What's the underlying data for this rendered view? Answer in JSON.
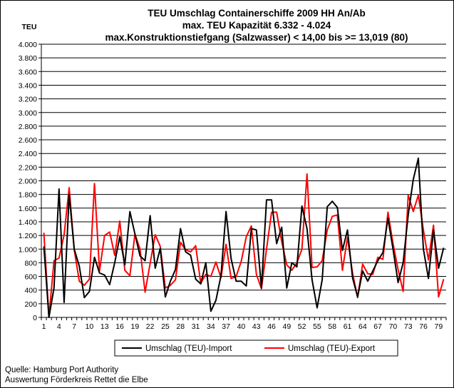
{
  "source_lines": [
    "Quelle: Hamburg Port Authority",
    "Auswertung Förderkreis Rettet die Elbe"
  ],
  "chart_data": {
    "type": "line",
    "title": [
      "TEU Umschlag Containerschiffe 2009 HH An/Ab",
      "max. TEU Kapazität  6.332 - 4.024",
      "max.Konstruktionstiefgang (Salzwasser) < 14,00 bis >= 13,019 (80)"
    ],
    "ylabel": "TEU",
    "xlabel": "",
    "ylim": [
      0,
      4000
    ],
    "yticks": [
      0,
      200,
      400,
      600,
      800,
      1000,
      1200,
      1400,
      1600,
      1800,
      2000,
      2200,
      2400,
      2600,
      2800,
      3000,
      3200,
      3400,
      3600,
      3800,
      4000
    ],
    "ytick_labels": [
      "0",
      "200",
      "400",
      "600",
      "800",
      "1.000",
      "1.200",
      "1.400",
      "1.600",
      "1.800",
      "2.000",
      "2.200",
      "2.400",
      "2.600",
      "2.800",
      "3.000",
      "3.200",
      "3.400",
      "3.600",
      "3.800",
      "4.000"
    ],
    "xticks": [
      1,
      4,
      7,
      10,
      13,
      16,
      19,
      22,
      25,
      28,
      31,
      34,
      37,
      40,
      43,
      46,
      49,
      52,
      55,
      58,
      61,
      64,
      67,
      70,
      73,
      76,
      79
    ],
    "grid": true,
    "legend_position": "bottom",
    "x": [
      1,
      2,
      3,
      4,
      5,
      6,
      7,
      8,
      9,
      10,
      11,
      12,
      13,
      14,
      15,
      16,
      17,
      18,
      19,
      20,
      21,
      22,
      23,
      24,
      25,
      26,
      27,
      28,
      29,
      30,
      31,
      32,
      33,
      34,
      35,
      36,
      37,
      38,
      39,
      40,
      41,
      42,
      43,
      44,
      45,
      46,
      47,
      48,
      49,
      50,
      51,
      52,
      53,
      54,
      55,
      56,
      57,
      58,
      59,
      60,
      61,
      62,
      63,
      64,
      65,
      66,
      67,
      68,
      69,
      70,
      71,
      72,
      73,
      74,
      75,
      76,
      77,
      78,
      79,
      80
    ],
    "series": [
      {
        "name": "Umschlag (TEU)-Import",
        "color": "#000000",
        "values": [
          1040,
          0,
          430,
          1880,
          220,
          1800,
          1000,
          750,
          290,
          380,
          880,
          650,
          620,
          480,
          800,
          1180,
          770,
          1550,
          1220,
          900,
          830,
          1490,
          720,
          1010,
          300,
          530,
          700,
          1300,
          960,
          910,
          560,
          490,
          800,
          90,
          250,
          610,
          1550,
          860,
          530,
          530,
          460,
          1300,
          1280,
          430,
          1720,
          1720,
          1080,
          1320,
          430,
          800,
          740,
          1630,
          1300,
          550,
          140,
          550,
          1620,
          1700,
          1610,
          980,
          1280,
          580,
          300,
          680,
          530,
          680,
          830,
          950,
          1450,
          1000,
          510,
          800,
          1500,
          2020,
          2330,
          1000,
          570,
          1280,
          720,
          1020
        ]
      },
      {
        "name": "Umschlag (TEU)-Export",
        "color": "#ff0000",
        "values": [
          1240,
          0,
          830,
          870,
          1210,
          1900,
          990,
          530,
          470,
          560,
          1960,
          680,
          1200,
          1250,
          910,
          1410,
          690,
          610,
          1220,
          1000,
          370,
          790,
          1210,
          1040,
          430,
          470,
          550,
          1100,
          990,
          960,
          1050,
          500,
          630,
          600,
          810,
          580,
          1070,
          570,
          600,
          820,
          1180,
          1340,
          630,
          420,
          1000,
          1540,
          1540,
          1110,
          770,
          690,
          800,
          1000,
          2100,
          730,
          740,
          830,
          1280,
          1480,
          1500,
          690,
          1170,
          650,
          290,
          780,
          640,
          630,
          880,
          850,
          1540,
          1080,
          700,
          380,
          1790,
          1550,
          1790,
          1280,
          840,
          1350,
          300,
          560
        ]
      }
    ]
  }
}
